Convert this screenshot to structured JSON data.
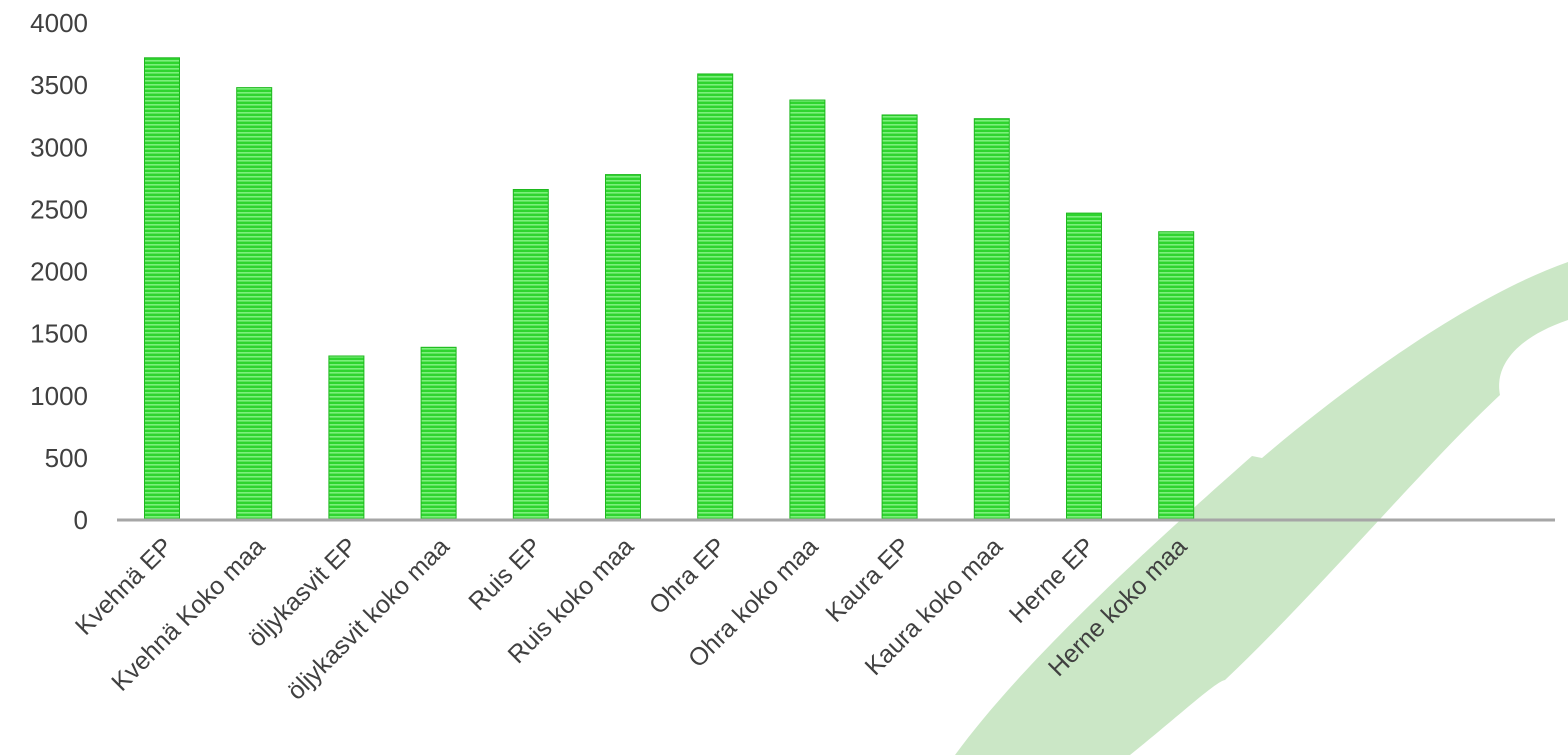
{
  "chart_data": {
    "type": "bar",
    "categories": [
      "Kvehnä EP",
      "Kvehnä Koko maa",
      "öljykasvit EP",
      "öljykasvit koko maa",
      "Ruis EP",
      "Ruis koko maa",
      "Ohra EP",
      "Ohra koko maa",
      "Kaura EP",
      "Kaura koko maa",
      "Herne EP",
      "Herne koko maa"
    ],
    "values": [
      3720,
      3480,
      1320,
      1390,
      2660,
      2780,
      3590,
      3380,
      3260,
      3230,
      2470,
      2320
    ],
    "ylim": [
      0,
      4000
    ],
    "yticks": [
      "0",
      "500",
      "1000",
      "1500",
      "2000",
      "2500",
      "3000",
      "3500",
      "4000"
    ],
    "title": "",
    "xlabel": "",
    "ylabel": "",
    "grid": false,
    "legend": "none",
    "colors": {
      "bar_fill": "#2fd42f",
      "bar_stripe": "#7cf07c",
      "bar_edge": "#1fb81f",
      "axis": "#a6a6a6",
      "text": "#404040",
      "decoration": "#cbe7c6"
    }
  }
}
